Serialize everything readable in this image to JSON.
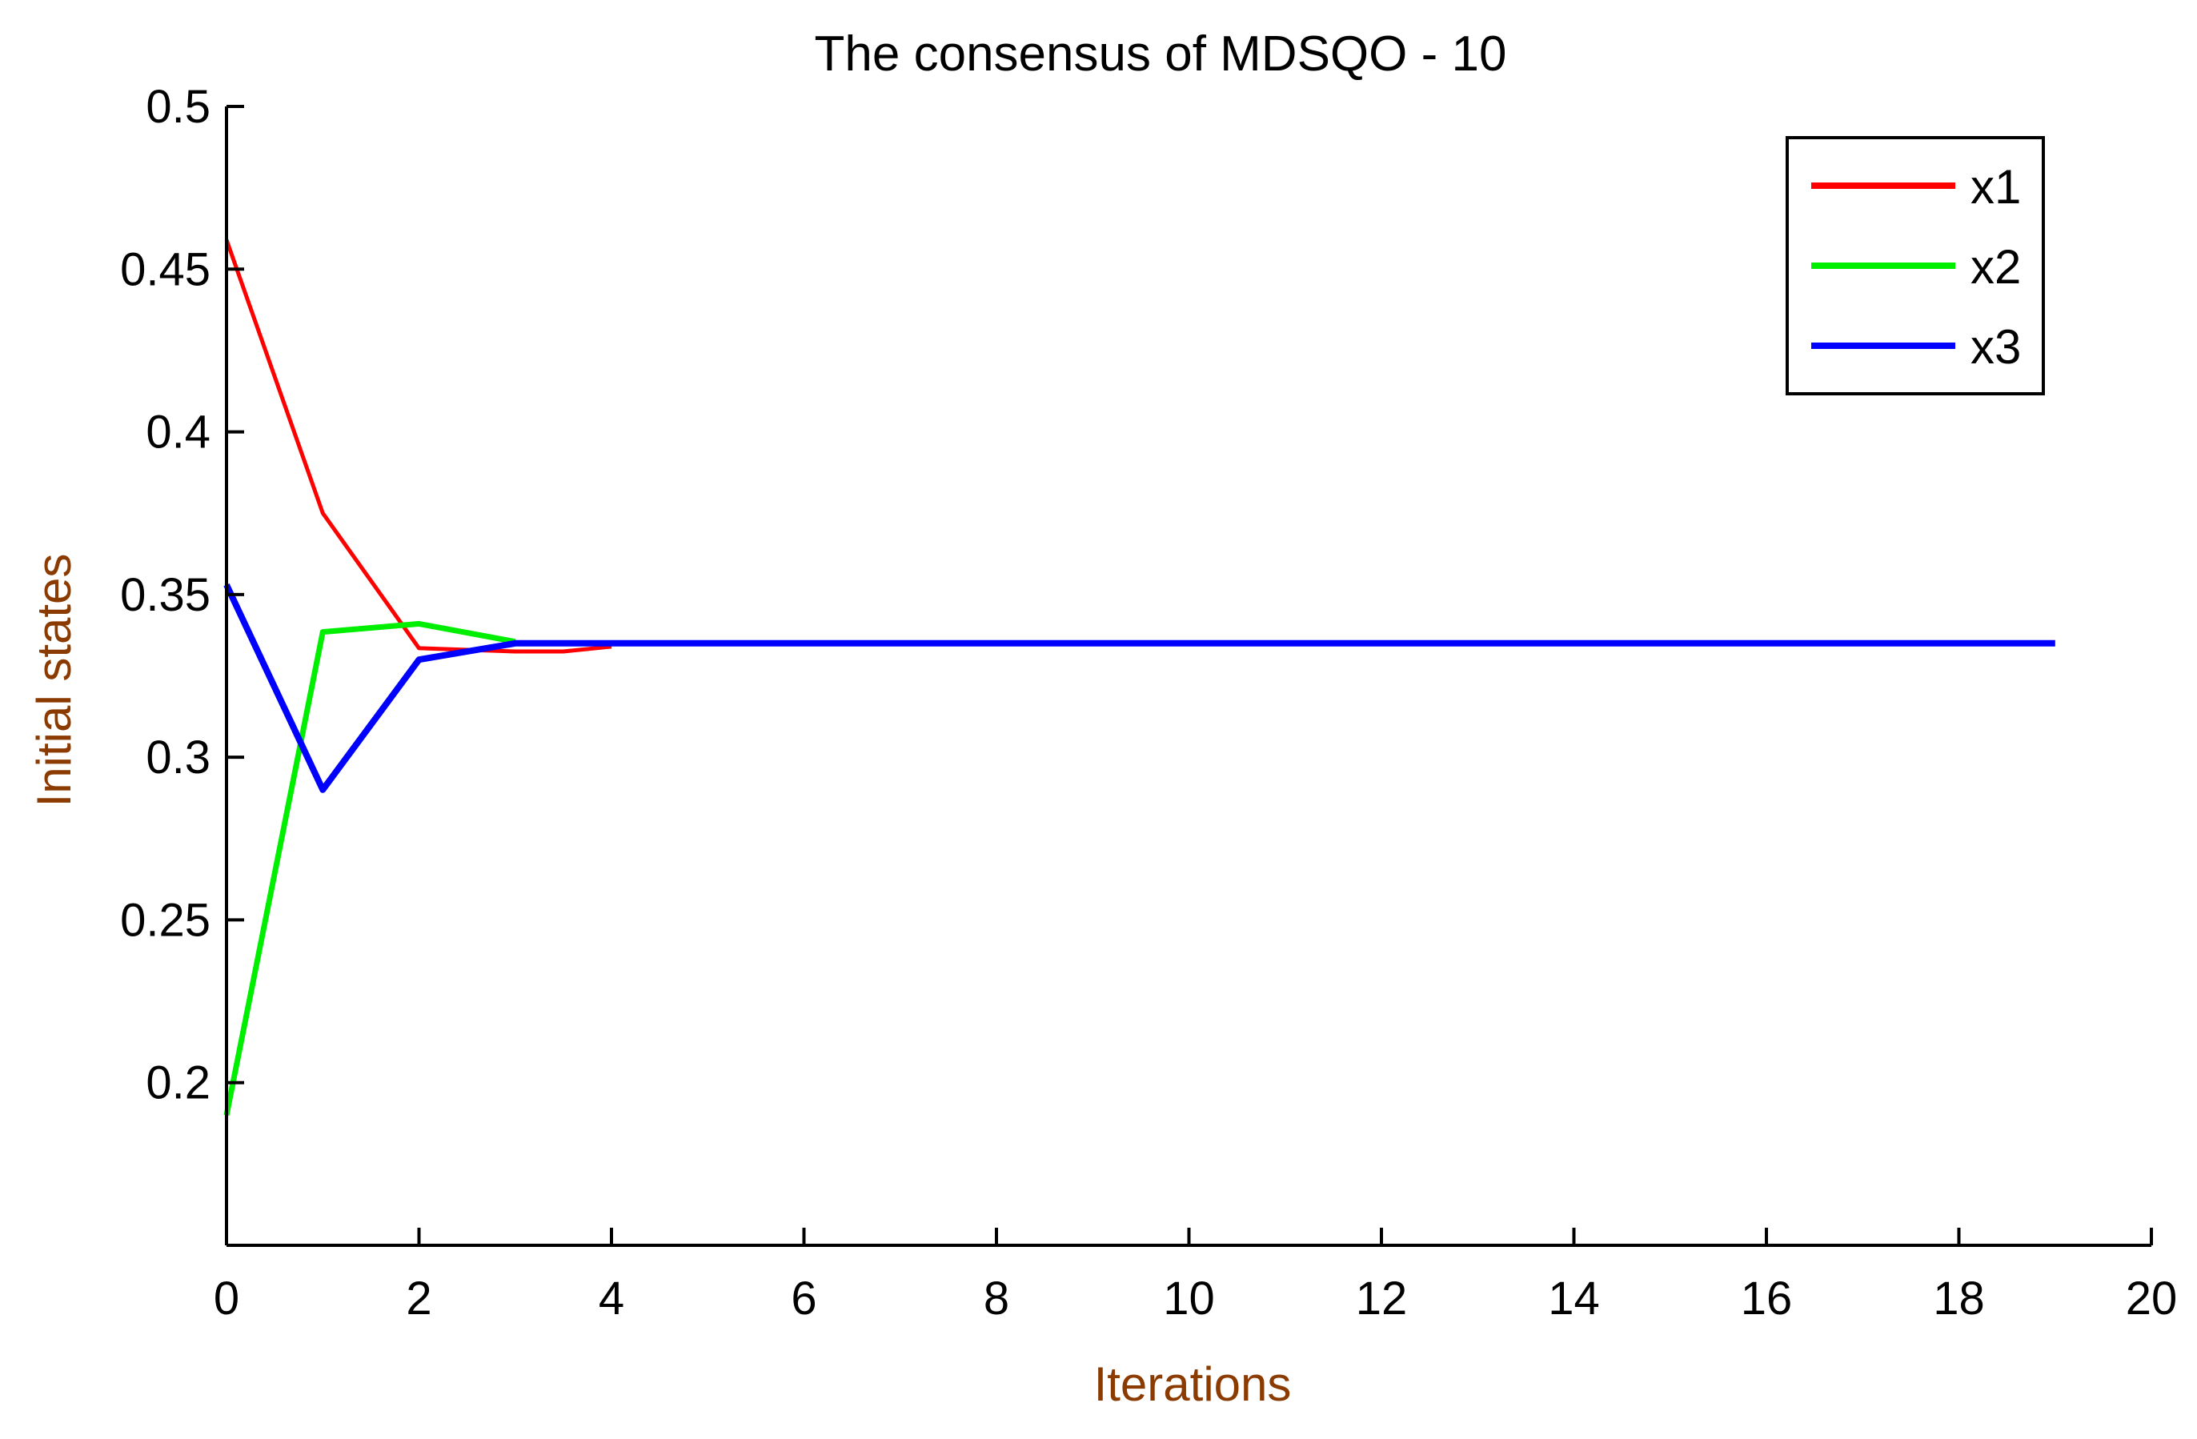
{
  "chart_data": {
    "type": "line",
    "title": "The consensus of MDSQO - 10",
    "xlabel": "Iterations",
    "ylabel": "Initial states",
    "xlim": [
      0,
      20
    ],
    "ylim": [
      0.15,
      0.5
    ],
    "x_ticks": [
      0,
      2,
      4,
      6,
      8,
      10,
      12,
      14,
      16,
      18,
      20
    ],
    "y_ticks": [
      0.2,
      0.25,
      0.3,
      0.35,
      0.4,
      0.45,
      0.5
    ],
    "x_tick_labels": [
      "0",
      "2",
      "4",
      "6",
      "8",
      "10",
      "12",
      "14",
      "16",
      "18",
      "20"
    ],
    "y_tick_labels": [
      "0.2",
      "0.25",
      "0.3",
      "0.35",
      "0.4",
      "0.45",
      "0.5"
    ],
    "grid": false,
    "legend_position": "top-right",
    "axis_label_color": "#8B3A00",
    "series": [
      {
        "name": "x1",
        "color": "#ff0000",
        "x": [
          0,
          1,
          2,
          3,
          3.5,
          4
        ],
        "y": [
          0.459,
          0.375,
          0.3335,
          0.3325,
          0.3325,
          0.334
        ]
      },
      {
        "name": "x2",
        "color": "#00ee00",
        "x": [
          0,
          1,
          2,
          3
        ],
        "y": [
          0.19,
          0.3385,
          0.341,
          0.3355
        ]
      },
      {
        "name": "x3",
        "color": "#0000ff",
        "x": [
          0,
          1,
          2,
          3,
          4,
          5,
          6,
          7,
          8,
          9,
          10,
          11,
          12,
          13,
          14,
          15,
          16,
          17,
          18,
          19
        ],
        "y": [
          0.353,
          0.29,
          0.33,
          0.335,
          0.335,
          0.335,
          0.335,
          0.335,
          0.335,
          0.335,
          0.335,
          0.335,
          0.335,
          0.335,
          0.335,
          0.335,
          0.335,
          0.335,
          0.335,
          0.335
        ]
      }
    ]
  }
}
